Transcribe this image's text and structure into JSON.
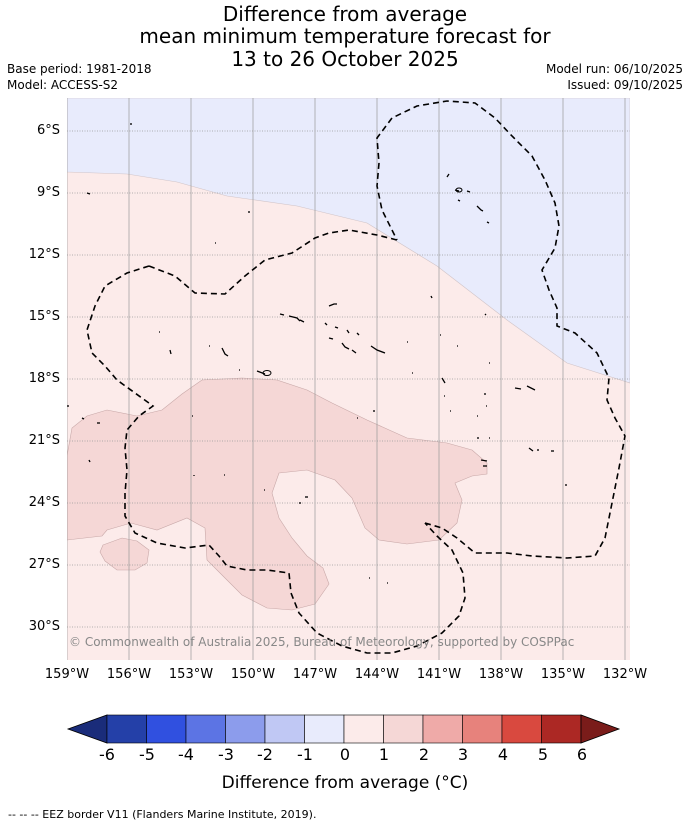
{
  "title": {
    "line1": "Difference from average",
    "line2": "mean minimum temperature forecast for",
    "line3": "13 to 26 October 2025"
  },
  "meta": {
    "base_period": "Base period: 1981-2018",
    "model": "Model: ACCESS-S2",
    "model_run": "Model run: 06/10/2025",
    "issued": "Issued: 09/10/2025"
  },
  "map": {
    "copyright": "© Commonwealth of Australia 2025, Bureau of Meteorology, supported by COSPPac",
    "lat_labels": [
      "6°S",
      "9°S",
      "12°S",
      "15°S",
      "18°S",
      "21°S",
      "24°S",
      "27°S",
      "30°S"
    ],
    "lon_labels": [
      "159°W",
      "156°W",
      "153°W",
      "150°W",
      "147°W",
      "144°W",
      "141°W",
      "138°W",
      "135°W",
      "132°W"
    ],
    "colors": {
      "cool_band": "#e8ebfc",
      "warm_0_1": "#fcebea",
      "warm_1_2": "#f5d7d6",
      "gridline": "#999999",
      "eez_border": "#000000"
    }
  },
  "colorbar": {
    "ticks": [
      "-6",
      "-5",
      "-4",
      "-3",
      "-2",
      "-1",
      "0",
      "1",
      "2",
      "3",
      "4",
      "5",
      "6"
    ],
    "colors": [
      "#2440a8",
      "#3050e0",
      "#5c74e4",
      "#8c9cec",
      "#c0c8f4",
      "#e8ebfc",
      "#fcebea",
      "#f5d7d6",
      "#efaaa8",
      "#e7827c",
      "#d9493f",
      "#ac2824"
    ],
    "under_color": "#1a2c7a",
    "over_color": "#7a1c1a",
    "title": "Difference from average (°C)"
  },
  "footer": "--  --  -- EEZ border V11 (Flanders Marine Institute, 2019)."
}
